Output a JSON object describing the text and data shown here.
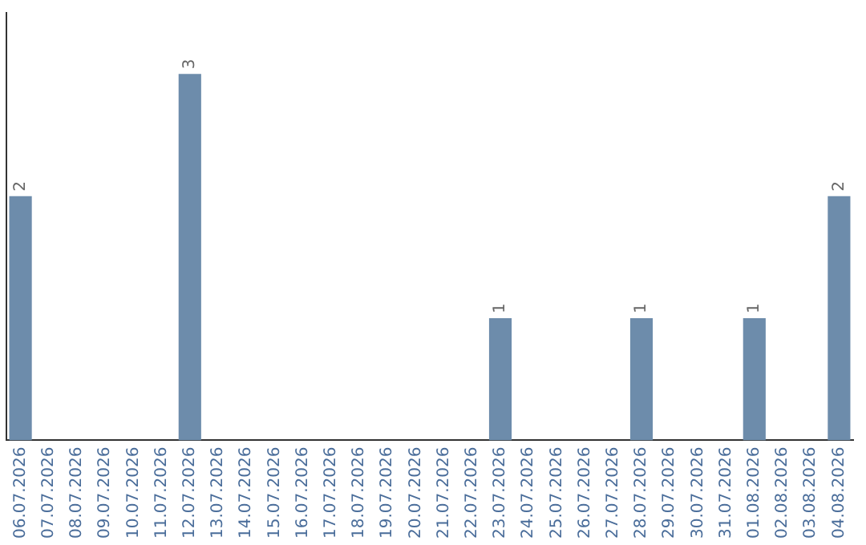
{
  "chart_data": {
    "type": "bar",
    "categories": [
      "06.07.2026",
      "07.07.2026",
      "08.07.2026",
      "09.07.2026",
      "10.07.2026",
      "11.07.2026",
      "12.07.2026",
      "13.07.2026",
      "14.07.2026",
      "15.07.2026",
      "16.07.2026",
      "17.07.2026",
      "18.07.2026",
      "19.07.2026",
      "20.07.2026",
      "21.07.2026",
      "22.07.2026",
      "23.07.2026",
      "24.07.2026",
      "25.07.2026",
      "26.07.2026",
      "27.07.2026",
      "28.07.2026",
      "29.07.2026",
      "30.07.2026",
      "31.07.2026",
      "01.08.2026",
      "02.08.2026",
      "03.08.2026",
      "04.08.2026"
    ],
    "values": [
      2,
      0,
      0,
      0,
      0,
      0,
      3,
      0,
      0,
      0,
      0,
      0,
      0,
      0,
      0,
      0,
      0,
      1,
      0,
      0,
      0,
      0,
      1,
      0,
      0,
      0,
      1,
      0,
      0,
      2
    ],
    "value_labels": [
      "2",
      null,
      null,
      null,
      null,
      null,
      "3",
      null,
      null,
      null,
      null,
      null,
      null,
      null,
      null,
      null,
      null,
      "1",
      null,
      null,
      null,
      null,
      "1",
      null,
      null,
      null,
      "1",
      null,
      null,
      "2"
    ],
    "color": "#6d8cab",
    "grid": false,
    "legend": false,
    "tick_labels": "x"
  }
}
